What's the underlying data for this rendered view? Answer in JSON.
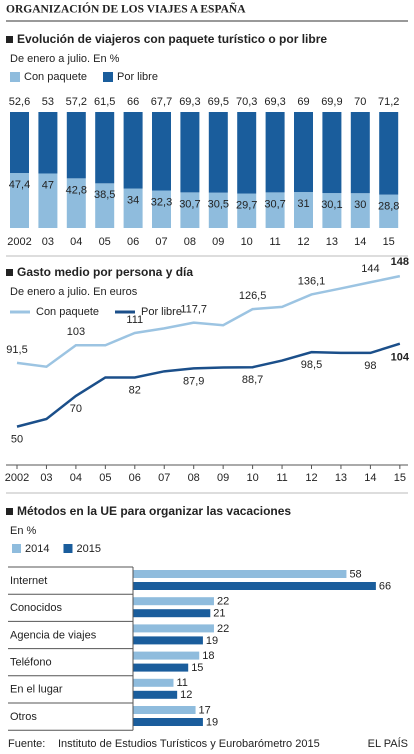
{
  "title": "ORGANIZACIÓN DE LOS VIAJES A ESPAÑA",
  "source_label": "Fuente:",
  "source": "Instituto de Estudios Turísticos y Eurobarómetro 2015",
  "credit": "EL PAÍS",
  "chart_data": [
    {
      "type": "stacked_bar",
      "title": "Evolución de viajeros con paquete turístico o por libre",
      "subtitle": "De enero a julio. En %",
      "categories": [
        "2002",
        "03",
        "04",
        "05",
        "06",
        "07",
        "08",
        "09",
        "10",
        "11",
        "12",
        "13",
        "14",
        "15"
      ],
      "ylim": [
        0,
        100
      ],
      "series": [
        {
          "name": "Con paquete",
          "color": "#8fbcdd",
          "values": [
            47.4,
            47,
            42.8,
            38.5,
            34,
            32.3,
            30.7,
            30.5,
            29.7,
            30.7,
            31,
            30.1,
            30,
            28.8
          ],
          "value_labels": [
            "47,4",
            "47",
            "42,8",
            "38,5",
            "34",
            "32,3",
            "30,7",
            "30,5",
            "29,7",
            "30,7",
            "31",
            "30,1",
            "30",
            "28,8"
          ]
        },
        {
          "name": "Por libre",
          "color": "#1a5d9c",
          "values": [
            52.6,
            53,
            57.2,
            61.5,
            66,
            67.7,
            69.3,
            69.5,
            70.3,
            69.3,
            69,
            69.9,
            70,
            71.2
          ],
          "value_labels": [
            "52,6",
            "53",
            "57,2",
            "61,5",
            "66",
            "67,7",
            "69,3",
            "69,5",
            "70,3",
            "69,3",
            "69",
            "69,9",
            "70",
            "71,2"
          ]
        }
      ]
    },
    {
      "type": "line",
      "title": "Gasto medio por persona y día",
      "subtitle": "De enero a julio. En euros",
      "categories": [
        "2002",
        "03",
        "04",
        "05",
        "06",
        "07",
        "08",
        "09",
        "10",
        "11",
        "12",
        "13",
        "14",
        "15"
      ],
      "ylim": [
        25,
        152
      ],
      "series": [
        {
          "name": "Con paquete",
          "color": "#9cc4e2",
          "values": [
            91.5,
            89,
            103,
            103,
            111,
            114,
            117.7,
            116,
            126.5,
            128,
            136.1,
            140,
            144,
            148
          ],
          "value_labels": [
            "91,5",
            null,
            "103",
            null,
            "111",
            null,
            "117,7",
            null,
            "126,5",
            null,
            "136,1",
            null,
            "144",
            "148"
          ]
        },
        {
          "name": "Por libre",
          "color": "#1b4f8a",
          "values": [
            50,
            55,
            70,
            82,
            82,
            86,
            87.9,
            88.5,
            88.7,
            93,
            98.5,
            98,
            98,
            104
          ],
          "value_labels": [
            "50",
            null,
            "70",
            null,
            "82",
            null,
            "87,9",
            null,
            "88,7",
            null,
            "98,5",
            null,
            "98",
            "104"
          ]
        }
      ]
    },
    {
      "type": "hbar",
      "title": "Métodos en la UE para organizar las vacaciones",
      "subtitle": "En %",
      "categories": [
        "Internet",
        "Conocidos",
        "Agencia de viajes",
        "Teléfono",
        "En el lugar",
        "Otros"
      ],
      "xlim": [
        0,
        70
      ],
      "series": [
        {
          "name": "2014",
          "color": "#8fbcdd",
          "values": [
            58,
            22,
            22,
            18,
            11,
            17
          ]
        },
        {
          "name": "2015",
          "color": "#1a5d9c",
          "values": [
            66,
            21,
            19,
            15,
            12,
            19
          ]
        }
      ]
    }
  ]
}
